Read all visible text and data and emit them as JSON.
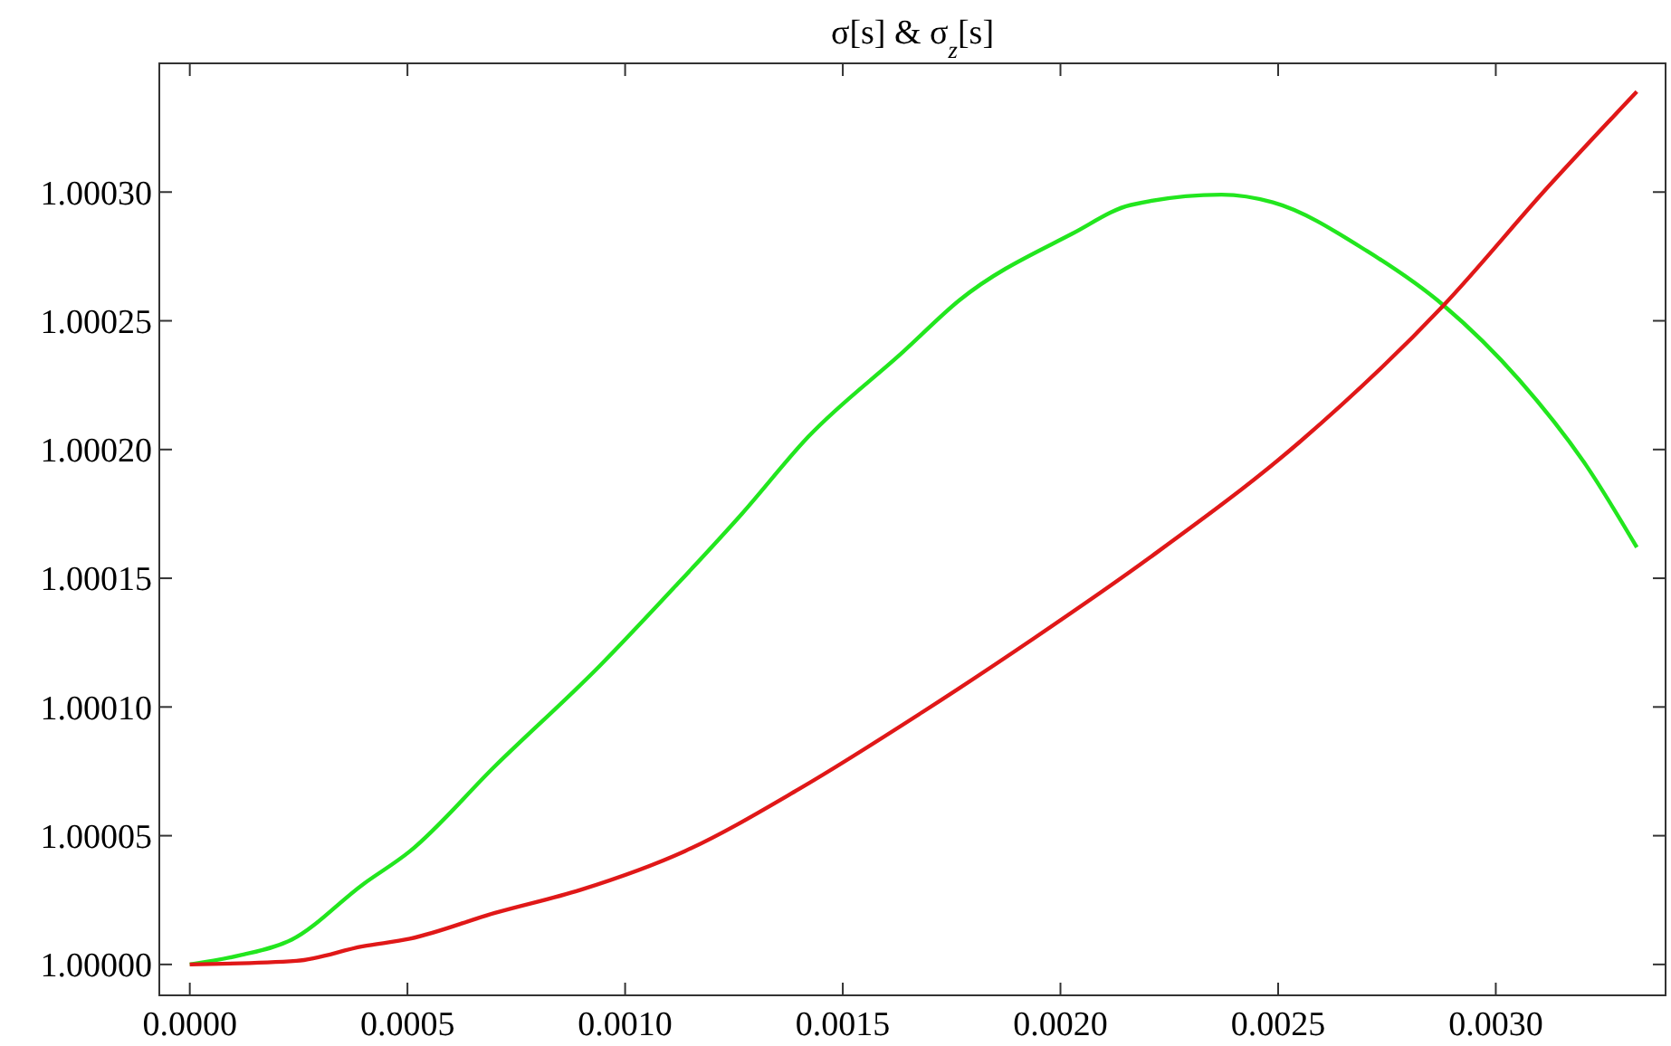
{
  "chart_data": {
    "type": "line",
    "title": "σ[s] & σ$_{z}$[s]",
    "xlim": [
      -7e-05,
      0.00339
    ],
    "ylim": [
      0.999988,
      1.00035
    ],
    "xticks": [
      {
        "value": 0,
        "label": "0.0000"
      },
      {
        "value": 0.0005,
        "label": "0.0005"
      },
      {
        "value": 0.001,
        "label": "0.0010"
      },
      {
        "value": 0.0015,
        "label": "0.0015"
      },
      {
        "value": 0.002,
        "label": "0.0020"
      },
      {
        "value": 0.0025,
        "label": "0.0025"
      },
      {
        "value": 0.003,
        "label": "0.0030"
      }
    ],
    "yticks": [
      {
        "value": 1,
        "label": "1.00000"
      },
      {
        "value": 1.00005,
        "label": "1.00005"
      },
      {
        "value": 1.0001,
        "label": "1.00010"
      },
      {
        "value": 1.00015,
        "label": "1.00015"
      },
      {
        "value": 1.0002,
        "label": "1.00020"
      },
      {
        "value": 1.00025,
        "label": "1.00025"
      },
      {
        "value": 1.0003,
        "label": "1.00030"
      }
    ],
    "grid": false,
    "marker": "none",
    "line_style": "solid",
    "series": [
      {
        "color": "#22e61e",
        "x": [
          0,
          0.000114,
          0.000234,
          0.000397,
          0.000506,
          0.000701,
          0.000942,
          0.001116,
          0.001268,
          0.001421,
          0.001639,
          0.001768,
          0.002029,
          0.002162,
          0.00237,
          0.002488,
          0.002705,
          0.00288,
          0.003054,
          0.003207,
          0.003324
        ],
        "values": [
          1,
          1.0000035,
          1.0000096,
          1.000031,
          1.000044,
          1.000077,
          1.000116,
          1.000147,
          1.000175,
          1.000205,
          1.000238,
          1.000258,
          1.000284,
          1.000295,
          1.000299,
          1.000296,
          1.000277,
          1.000256,
          1.000227,
          1.000194,
          1.000162
        ]
      },
      {
        "color": "#e01818",
        "x": [
          0,
          0.000245,
          0.000397,
          0.000506,
          0.000701,
          0.000898,
          0.001137,
          0.001398,
          0.001683,
          0.001942,
          0.002205,
          0.00255,
          0.00288,
          0.00312,
          0.003324
        ],
        "values": [
          1,
          1.0000014,
          1.000007,
          1.00001,
          1.00002,
          1.000029,
          1.000044,
          1.000068,
          1.000098,
          1.000127,
          1.000158,
          1.000203,
          1.000256,
          1.000302,
          1.000339
        ]
      }
    ]
  }
}
